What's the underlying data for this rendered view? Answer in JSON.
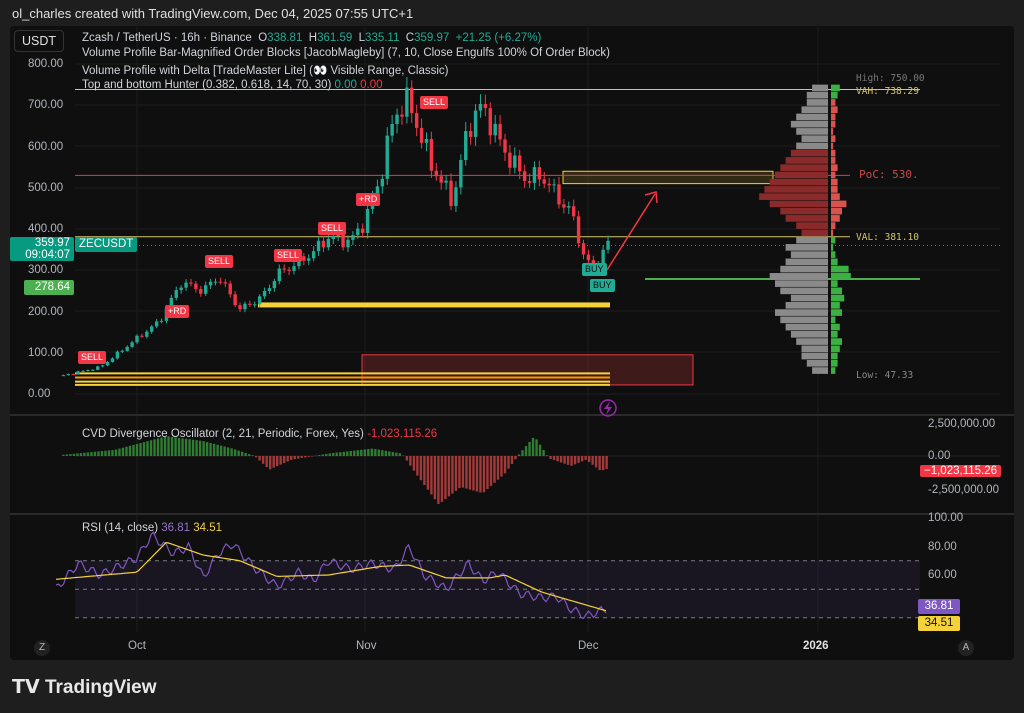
{
  "credit": "ol_charles created with TradingView.com, Dec 04, 2025 07:55 UTC+1",
  "currency": "USDT",
  "legend": {
    "symbol": "Zcash / TetherUS · 16h · Binance",
    "o_label": "O",
    "o": "338.81",
    "h_label": "H",
    "h": "361.59",
    "l_label": "L",
    "l": "335.11",
    "c_label": "C",
    "c": "359.97",
    "change": "+21.25 (+6.27%)",
    "ind1": "Volume Profile Bar-Magnified Order Blocks [JacobMagleby] (7, 10, Close Engulfs 100% Of Order Block)",
    "ind2": "Volume Profile with Delta [TradeMaster Lite] (👀 Visible Range, Classic)",
    "ind3": "Top and bottom Hunter (0.382, 0.618, 14, 70, 30)",
    "ind3_v1": "0.00",
    "ind3_v2": "0.00",
    "cvd": "CVD Divergence Oscillator (2, 21, Periodic, Forex, Yes)",
    "cvd_val": "-1,023,115.26",
    "rsi": "RSI (14, close)",
    "rsi_val": "36.81",
    "rsi_ma": "34.51"
  },
  "price_axis": [
    "800.00",
    "700.00",
    "600.00",
    "500.00",
    "400.00",
    "300.00",
    "200.00",
    "100.00",
    "0.00"
  ],
  "tags": {
    "last_price": "359.97",
    "countdown": "09:04:07",
    "symbol_tag": "ZECUSDT",
    "level": "278.64"
  },
  "profile_labels": {
    "high": "High: 750.00",
    "vah": "VAH: 738.29",
    "poc": "PoC: 530.",
    "val": "VAL: 381.10",
    "low": "Low: 47.33"
  },
  "cvd_axis": [
    "2,500,000.00",
    "0.00",
    "-2,500,000.00"
  ],
  "cvd_tag": "−1,023,115.26",
  "rsi_axis": [
    "100.00",
    "80.00",
    "60.00"
  ],
  "rsi_tags": {
    "rsi": "36.81",
    "ma": "34.51"
  },
  "time_axis": [
    "Oct",
    "Nov",
    "Dec",
    "2026"
  ],
  "axis_buttons": {
    "left": "Z",
    "right": "A"
  },
  "signals": {
    "sell": "SELL",
    "buy": "BUY",
    "rd": "+RD"
  },
  "brand": "TradingView",
  "colors": {
    "up": "#22ab94",
    "down": "#f23645",
    "rsi": "#7e57c2",
    "rsi_ma": "#f5d23a",
    "level": "#4caf50",
    "poc": "#f23645",
    "vah": "#d6c56a"
  },
  "chart_data": {
    "type": "candlestick",
    "symbol": "ZECUSDT",
    "timeframe": "16h",
    "ylim": [
      0,
      800
    ],
    "close_keypoints": [
      [
        "2025-09-21",
        45
      ],
      [
        "2025-09-26",
        65
      ],
      [
        "2025-10-01",
        135
      ],
      [
        "2025-10-04",
        175
      ],
      [
        "2025-10-07",
        270
      ],
      [
        "2025-10-10",
        250
      ],
      [
        "2025-10-12",
        285
      ],
      [
        "2025-10-15",
        205
      ],
      [
        "2025-10-18",
        235
      ],
      [
        "2025-10-20",
        290
      ],
      [
        "2025-10-23",
        320
      ],
      [
        "2025-10-25",
        345
      ],
      [
        "2025-10-27",
        380
      ],
      [
        "2025-10-30",
        370
      ],
      [
        "2025-11-01",
        420
      ],
      [
        "2025-11-03",
        520
      ],
      [
        "2025-11-05",
        680
      ],
      [
        "2025-11-07",
        710
      ],
      [
        "2025-11-09",
        600
      ],
      [
        "2025-11-11",
        520
      ],
      [
        "2025-11-13",
        470
      ],
      [
        "2025-11-15",
        650
      ],
      [
        "2025-11-17",
        700
      ],
      [
        "2025-11-19",
        620
      ],
      [
        "2025-11-21",
        560
      ],
      [
        "2025-11-23",
        520
      ],
      [
        "2025-11-25",
        530
      ],
      [
        "2025-11-27",
        480
      ],
      [
        "2025-11-29",
        440
      ],
      [
        "2025-12-01",
        320
      ],
      [
        "2025-12-02",
        305
      ],
      [
        "2025-12-03",
        340
      ],
      [
        "2025-12-04",
        359.97
      ]
    ],
    "levels": {
      "high": 750,
      "vah": 738.29,
      "poc": 530,
      "val": 381.1,
      "low": 47.33,
      "support": 278.64
    },
    "cvd_keypoints": [
      [
        "2025-09-21",
        0.1
      ],
      [
        "2025-09-28",
        0.5
      ],
      [
        "2025-10-05",
        1.6
      ],
      [
        "2025-10-10",
        1.2
      ],
      [
        "2025-10-14",
        0.6
      ],
      [
        "2025-10-17",
        0.0
      ],
      [
        "2025-10-19",
        -1.1
      ],
      [
        "2025-10-22",
        -0.3
      ],
      [
        "2025-10-27",
        0.2
      ],
      [
        "2025-11-02",
        0.6
      ],
      [
        "2025-11-06",
        0.2
      ],
      [
        "2025-11-08",
        -1.5
      ],
      [
        "2025-11-11",
        -3.9
      ],
      [
        "2025-11-14",
        -2.5
      ],
      [
        "2025-11-17",
        -3.0
      ],
      [
        "2025-11-20",
        -1.4
      ],
      [
        "2025-11-22",
        0.2
      ],
      [
        "2025-11-24",
        1.6
      ],
      [
        "2025-11-26",
        -0.2
      ],
      [
        "2025-11-29",
        -0.8
      ],
      [
        "2025-12-01",
        -0.3
      ],
      [
        "2025-12-03",
        -1.2
      ],
      [
        "2025-12-04",
        -1.02
      ]
    ],
    "cvd_ylim": [
      -2500000,
      2500000
    ],
    "rsi_keypoints": [
      [
        "2025-09-20",
        50
      ],
      [
        "2025-09-23",
        68
      ],
      [
        "2025-09-26",
        60
      ],
      [
        "2025-10-01",
        72
      ],
      [
        "2025-10-03",
        88
      ],
      [
        "2025-10-06",
        75
      ],
      [
        "2025-10-08",
        80
      ],
      [
        "2025-10-10",
        58
      ],
      [
        "2025-10-12",
        75
      ],
      [
        "2025-10-14",
        82
      ],
      [
        "2025-10-17",
        65
      ],
      [
        "2025-10-20",
        52
      ],
      [
        "2025-10-23",
        62
      ],
      [
        "2025-10-25",
        56
      ],
      [
        "2025-10-27",
        70
      ],
      [
        "2025-10-30",
        64
      ],
      [
        "2025-11-02",
        68
      ],
      [
        "2025-11-05",
        64
      ],
      [
        "2025-11-07",
        80
      ],
      [
        "2025-11-09",
        60
      ],
      [
        "2025-11-12",
        50
      ],
      [
        "2025-11-15",
        68
      ],
      [
        "2025-11-17",
        56
      ],
      [
        "2025-11-19",
        62
      ],
      [
        "2025-11-22",
        47
      ],
      [
        "2025-11-25",
        44
      ],
      [
        "2025-11-27",
        45
      ],
      [
        "2025-11-29",
        36
      ],
      [
        "2025-12-01",
        31
      ],
      [
        "2025-12-02",
        33
      ],
      [
        "2025-12-04",
        36.81
      ]
    ],
    "rsi_ma_keypoints": [
      [
        "2025-09-20",
        57
      ],
      [
        "2025-10-01",
        62
      ],
      [
        "2025-10-05",
        83
      ],
      [
        "2025-10-10",
        74
      ],
      [
        "2025-10-15",
        70
      ],
      [
        "2025-10-20",
        59
      ],
      [
        "2025-10-27",
        60
      ],
      [
        "2025-11-03",
        66
      ],
      [
        "2025-11-07",
        67
      ],
      [
        "2025-11-12",
        58
      ],
      [
        "2025-11-18",
        58
      ],
      [
        "2025-11-20",
        60
      ],
      [
        "2025-11-25",
        48
      ],
      [
        "2025-12-01",
        39
      ],
      [
        "2025-12-04",
        34.51
      ]
    ],
    "rsi_bands": [
      70,
      50,
      30
    ],
    "volume_profile": [
      3,
      4,
      5,
      5,
      6,
      7,
      8,
      9,
      10,
      8,
      7,
      9,
      10,
      11,
      9,
      8,
      7,
      8,
      6,
      5,
      6,
      8,
      9,
      11,
      13,
      12,
      11,
      10,
      9,
      8,
      7,
      6,
      5,
      6,
      7,
      6,
      5,
      4,
      4,
      3
    ],
    "profile_delta": [
      2,
      3,
      3,
      4,
      5,
      3,
      4,
      2,
      5,
      4,
      6,
      5,
      3,
      9,
      8,
      3,
      2,
      1,
      2,
      -1,
      -2,
      -4,
      -5,
      -7,
      -4,
      -3,
      -3,
      -2,
      -3,
      -2,
      -2,
      -1,
      -2,
      -1,
      -2,
      -2,
      -3,
      -2,
      3,
      4
    ]
  }
}
